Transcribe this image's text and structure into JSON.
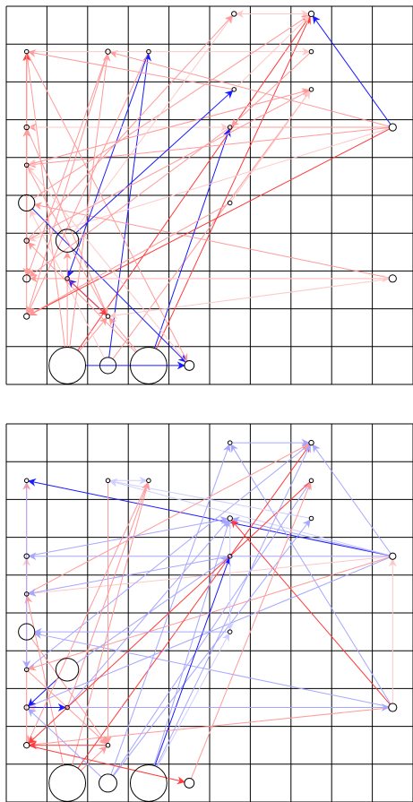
{
  "colors": {
    "grid": "#000000",
    "node_stroke": "#000000",
    "red": "#ff3b3b",
    "pink": "#ff9a9a",
    "light_pink": "#ffc8c8",
    "blue": "#1a1aff",
    "light_blue": "#a6a6ff",
    "pale_blue": "#cfcfff",
    "background": "#ffffff"
  },
  "panels": [
    {
      "id": "top",
      "grid_cols": 10,
      "grid_rows": 10,
      "nodes": [
        {
          "id": "a1",
          "col": 5.6,
          "row": 0.2,
          "size": 0.06
        },
        {
          "id": "a2",
          "col": 7.5,
          "row": 0.2,
          "size": 0.07
        },
        {
          "id": "a3",
          "col": 0.5,
          "row": 1.2,
          "size": 0.05
        },
        {
          "id": "a4",
          "col": 2.5,
          "row": 1.2,
          "size": 0.06
        },
        {
          "id": "a5",
          "col": 3.5,
          "row": 1.2,
          "size": 0.05
        },
        {
          "id": "a6",
          "col": 7.5,
          "row": 1.2,
          "size": 0.05
        },
        {
          "id": "a7",
          "col": 5.6,
          "row": 2.2,
          "size": 0.05
        },
        {
          "id": "a8",
          "col": 7.5,
          "row": 2.2,
          "size": 0.05
        },
        {
          "id": "a9",
          "col": 0.5,
          "row": 3.2,
          "size": 0.06
        },
        {
          "id": "a10",
          "col": 5.5,
          "row": 3.2,
          "size": 0.05
        },
        {
          "id": "a11",
          "col": 9.5,
          "row": 3.2,
          "size": 0.09
        },
        {
          "id": "a12",
          "col": 0.5,
          "row": 4.2,
          "size": 0.05
        },
        {
          "id": "a13",
          "col": 0.5,
          "row": 5.2,
          "size": 0.2
        },
        {
          "id": "a14",
          "col": 5.5,
          "row": 5.2,
          "size": 0.05
        },
        {
          "id": "a15",
          "col": 1.5,
          "row": 6.2,
          "size": 0.28
        },
        {
          "id": "a16",
          "col": 0.5,
          "row": 6.2,
          "size": 0.06
        },
        {
          "id": "a17",
          "col": 1.5,
          "row": 7.2,
          "size": 0.05
        },
        {
          "id": "a18",
          "col": 0.5,
          "row": 7.2,
          "size": 0.09
        },
        {
          "id": "a19",
          "col": 9.5,
          "row": 7.2,
          "size": 0.09
        },
        {
          "id": "a20",
          "col": 0.5,
          "row": 8.2,
          "size": 0.07
        },
        {
          "id": "a21",
          "col": 2.5,
          "row": 8.2,
          "size": 0.05
        },
        {
          "id": "a22",
          "col": 1.5,
          "row": 9.5,
          "size": 0.45
        },
        {
          "id": "a23",
          "col": 2.5,
          "row": 9.5,
          "size": 0.2
        },
        {
          "id": "a24",
          "col": 3.5,
          "row": 9.5,
          "size": 0.45
        },
        {
          "id": "a25",
          "col": 4.5,
          "row": 9.5,
          "size": 0.12
        }
      ],
      "edges": [
        {
          "from": "a22",
          "to": "a2",
          "color": "red"
        },
        {
          "from": "a22",
          "to": "a4",
          "color": "pink"
        },
        {
          "from": "a22",
          "to": "a3",
          "color": "pink"
        },
        {
          "from": "a22",
          "to": "a25",
          "color": "blue"
        },
        {
          "from": "a22",
          "to": "a21",
          "color": "pink"
        },
        {
          "from": "a23",
          "to": "a5",
          "color": "blue"
        },
        {
          "from": "a23",
          "to": "a8",
          "color": "pink"
        },
        {
          "from": "a23",
          "to": "a13",
          "color": "light_pink"
        },
        {
          "from": "a24",
          "to": "a10",
          "color": "blue"
        },
        {
          "from": "a24",
          "to": "a2",
          "color": "red"
        },
        {
          "from": "a24",
          "to": "a16",
          "color": "pink"
        },
        {
          "from": "a11",
          "to": "a2",
          "color": "blue"
        },
        {
          "from": "a11",
          "to": "a9",
          "color": "pink"
        },
        {
          "from": "a11",
          "to": "a12",
          "color": "pink"
        },
        {
          "from": "a11",
          "to": "a20",
          "color": "red"
        },
        {
          "from": "a11",
          "to": "a16",
          "color": "light_pink"
        },
        {
          "from": "a11",
          "to": "a4",
          "color": "pink"
        },
        {
          "from": "a19",
          "to": "a18",
          "color": "pink"
        },
        {
          "from": "a19",
          "to": "a13",
          "color": "pink"
        },
        {
          "from": "a19",
          "to": "a21",
          "color": "light_pink"
        },
        {
          "from": "a3",
          "to": "a25",
          "color": "pink"
        },
        {
          "from": "a3",
          "to": "a6",
          "color": "light_pink"
        },
        {
          "from": "a4",
          "to": "a20",
          "color": "pink"
        },
        {
          "from": "a4",
          "to": "a18",
          "color": "pink"
        },
        {
          "from": "a5",
          "to": "a17",
          "color": "blue"
        },
        {
          "from": "a5",
          "to": "a20",
          "color": "pink"
        },
        {
          "from": "a1",
          "to": "a2",
          "color": "light_pink"
        },
        {
          "from": "a2",
          "to": "a1",
          "color": "light_pink"
        },
        {
          "from": "a6",
          "to": "a10",
          "color": "pink"
        },
        {
          "from": "a7",
          "to": "a3",
          "color": "pink"
        },
        {
          "from": "a8",
          "to": "a12",
          "color": "light_pink"
        },
        {
          "from": "a9",
          "to": "a10",
          "color": "light_pink"
        },
        {
          "from": "a12",
          "to": "a8",
          "color": "pink"
        },
        {
          "from": "a13",
          "to": "a25",
          "color": "blue"
        },
        {
          "from": "a13",
          "to": "a2",
          "color": "pink"
        },
        {
          "from": "a14",
          "to": "a20",
          "color": "pink"
        },
        {
          "from": "a15",
          "to": "a1",
          "color": "light_pink"
        },
        {
          "from": "a15",
          "to": "a7",
          "color": "blue"
        },
        {
          "from": "a16",
          "to": "a8",
          "color": "pink"
        },
        {
          "from": "a16",
          "to": "a1",
          "color": "pink"
        },
        {
          "from": "a17",
          "to": "a19",
          "color": "light_pink"
        },
        {
          "from": "a18",
          "to": "a3",
          "color": "red"
        },
        {
          "from": "a20",
          "to": "a9",
          "color": "pink"
        },
        {
          "from": "a21",
          "to": "a17",
          "color": "blue"
        },
        {
          "from": "a25",
          "to": "a12",
          "color": "light_pink"
        },
        {
          "from": "a24",
          "to": "a21",
          "color": "pink"
        },
        {
          "from": "a9",
          "to": "a21",
          "color": "pink"
        },
        {
          "from": "a10",
          "to": "a18",
          "color": "pink"
        },
        {
          "from": "a12",
          "to": "a21",
          "color": "pink"
        },
        {
          "from": "a22",
          "to": "a15",
          "color": "pink"
        },
        {
          "from": "a17",
          "to": "a21",
          "color": "red"
        },
        {
          "from": "a14",
          "to": "a8",
          "color": "light_pink"
        },
        {
          "from": "a3",
          "to": "a18",
          "color": "pink"
        },
        {
          "from": "a7",
          "to": "a2",
          "color": "light_pink"
        }
      ]
    },
    {
      "id": "bottom",
      "grid_cols": 10,
      "grid_rows": 10,
      "nodes": [
        {
          "id": "b1",
          "col": 5.5,
          "row": 0.5,
          "size": 0.05
        },
        {
          "id": "b2",
          "col": 7.5,
          "row": 0.5,
          "size": 0.06
        },
        {
          "id": "b3",
          "col": 0.5,
          "row": 1.5,
          "size": 0.05
        },
        {
          "id": "b4",
          "col": 2.5,
          "row": 1.5,
          "size": 0.05
        },
        {
          "id": "b5",
          "col": 3.5,
          "row": 1.5,
          "size": 0.05
        },
        {
          "id": "b6",
          "col": 7.5,
          "row": 1.5,
          "size": 0.05
        },
        {
          "id": "b7",
          "col": 5.5,
          "row": 2.5,
          "size": 0.06
        },
        {
          "id": "b8",
          "col": 7.5,
          "row": 2.5,
          "size": 0.05
        },
        {
          "id": "b9",
          "col": 0.5,
          "row": 3.5,
          "size": 0.06
        },
        {
          "id": "b10",
          "col": 5.5,
          "row": 3.5,
          "size": 0.05
        },
        {
          "id": "b11",
          "col": 9.5,
          "row": 3.5,
          "size": 0.08
        },
        {
          "id": "b12",
          "col": 0.5,
          "row": 4.5,
          "size": 0.05
        },
        {
          "id": "b13",
          "col": 0.5,
          "row": 5.5,
          "size": 0.2
        },
        {
          "id": "b14",
          "col": 5.5,
          "row": 5.5,
          "size": 0.05
        },
        {
          "id": "b15",
          "col": 1.5,
          "row": 6.5,
          "size": 0.28
        },
        {
          "id": "b16",
          "col": 0.5,
          "row": 6.5,
          "size": 0.05
        },
        {
          "id": "b17",
          "col": 1.5,
          "row": 7.5,
          "size": 0.05
        },
        {
          "id": "b18",
          "col": 0.5,
          "row": 7.5,
          "size": 0.06
        },
        {
          "id": "b19",
          "col": 9.5,
          "row": 7.5,
          "size": 0.1
        },
        {
          "id": "b20",
          "col": 0.5,
          "row": 8.5,
          "size": 0.07
        },
        {
          "id": "b21",
          "col": 2.5,
          "row": 8.5,
          "size": 0.05
        },
        {
          "id": "b22",
          "col": 1.5,
          "row": 9.5,
          "size": 0.45
        },
        {
          "id": "b23",
          "col": 2.5,
          "row": 9.5,
          "size": 0.22
        },
        {
          "id": "b24",
          "col": 3.5,
          "row": 9.5,
          "size": 0.45
        },
        {
          "id": "b25",
          "col": 4.5,
          "row": 9.5,
          "size": 0.12
        }
      ],
      "edges": [
        {
          "from": "b11",
          "to": "b3",
          "color": "blue"
        },
        {
          "from": "b11",
          "to": "b2",
          "color": "light_blue"
        },
        {
          "from": "b11",
          "to": "b9",
          "color": "light_blue"
        },
        {
          "from": "b11",
          "to": "b12",
          "color": "light_pink"
        },
        {
          "from": "b11",
          "to": "b16",
          "color": "pink"
        },
        {
          "from": "b11",
          "to": "b18",
          "color": "light_blue"
        },
        {
          "from": "b11",
          "to": "b4",
          "color": "pale_blue"
        },
        {
          "from": "b11",
          "to": "b7",
          "color": "light_blue"
        },
        {
          "from": "b19",
          "to": "b1",
          "color": "light_blue"
        },
        {
          "from": "b19",
          "to": "b7",
          "color": "red"
        },
        {
          "from": "b19",
          "to": "b18",
          "color": "light_pink"
        },
        {
          "from": "b19",
          "to": "b13",
          "color": "light_blue"
        },
        {
          "from": "b19",
          "to": "b11",
          "color": "light_pink"
        },
        {
          "from": "b19",
          "to": "b20",
          "color": "pink"
        },
        {
          "from": "b22",
          "to": "b2",
          "color": "red"
        },
        {
          "from": "b22",
          "to": "b5",
          "color": "pink"
        },
        {
          "from": "b22",
          "to": "b12",
          "color": "pink"
        },
        {
          "from": "b22",
          "to": "b21",
          "color": "pink"
        },
        {
          "from": "b23",
          "to": "b6",
          "color": "light_blue"
        },
        {
          "from": "b23",
          "to": "b1",
          "color": "light_blue"
        },
        {
          "from": "b23",
          "to": "b8",
          "color": "light_blue"
        },
        {
          "from": "b24",
          "to": "b10",
          "color": "blue"
        },
        {
          "from": "b24",
          "to": "b7",
          "color": "light_blue"
        },
        {
          "from": "b24",
          "to": "b2",
          "color": "light_blue"
        },
        {
          "from": "b24",
          "to": "b14",
          "color": "pale_blue"
        },
        {
          "from": "b20",
          "to": "b25",
          "color": "red"
        },
        {
          "from": "b20",
          "to": "b9",
          "color": "light_pink"
        },
        {
          "from": "b20",
          "to": "b3",
          "color": "pink"
        },
        {
          "from": "b17",
          "to": "b7",
          "color": "light_blue"
        },
        {
          "from": "b15",
          "to": "b18",
          "color": "blue"
        },
        {
          "from": "b15",
          "to": "b10",
          "color": "light_blue"
        },
        {
          "from": "b16",
          "to": "b2",
          "color": "light_blue"
        },
        {
          "from": "b12",
          "to": "b2",
          "color": "pink"
        },
        {
          "from": "b9",
          "to": "b7",
          "color": "light_blue"
        },
        {
          "from": "b13",
          "to": "b21",
          "color": "pink"
        },
        {
          "from": "b18",
          "to": "b17",
          "color": "blue"
        },
        {
          "from": "b17",
          "to": "b19",
          "color": "light_blue"
        },
        {
          "from": "b4",
          "to": "b5",
          "color": "pale_blue"
        },
        {
          "from": "b5",
          "to": "b20",
          "color": "pink"
        },
        {
          "from": "b4",
          "to": "b21",
          "color": "pink"
        },
        {
          "from": "b3",
          "to": "b16",
          "color": "light_blue"
        },
        {
          "from": "b6",
          "to": "b20",
          "color": "red"
        },
        {
          "from": "b8",
          "to": "b4",
          "color": "pale_blue"
        },
        {
          "from": "b1",
          "to": "b2",
          "color": "light_blue"
        },
        {
          "from": "b10",
          "to": "b12",
          "color": "light_blue"
        },
        {
          "from": "b14",
          "to": "b13",
          "color": "light_blue"
        },
        {
          "from": "b21",
          "to": "b20",
          "color": "red"
        },
        {
          "from": "b25",
          "to": "b6",
          "color": "pink"
        },
        {
          "from": "b17",
          "to": "b5",
          "color": "pink"
        },
        {
          "from": "b7",
          "to": "b14",
          "color": "pale_blue"
        },
        {
          "from": "b23",
          "to": "b18",
          "color": "light_blue"
        },
        {
          "from": "b16",
          "to": "b21",
          "color": "pink"
        }
      ]
    }
  ]
}
